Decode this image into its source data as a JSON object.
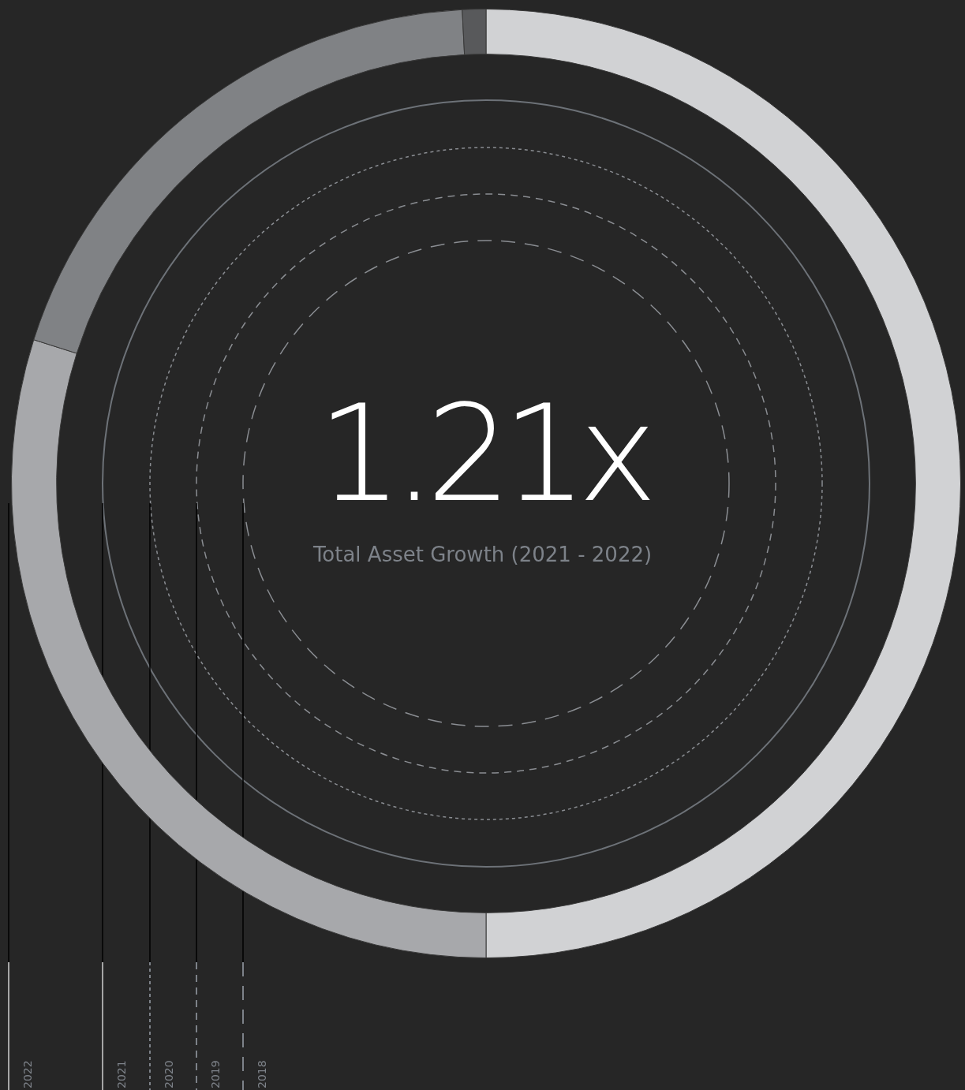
{
  "chart_data": {
    "type": "donut",
    "title": "1.21x",
    "subtitle": "Total Asset Growth (2021 - 2022)",
    "categories": [
      null,
      null,
      null,
      null
    ],
    "values": [
      50,
      29.9,
      19.3,
      0.8
    ],
    "colors": [
      "#d1d2d4",
      "#a7a8ab",
      "#808285",
      "#58595b"
    ],
    "legend": false,
    "annotations": [
      "2022",
      "2021",
      "2020",
      "2019",
      "2018"
    ]
  }
}
